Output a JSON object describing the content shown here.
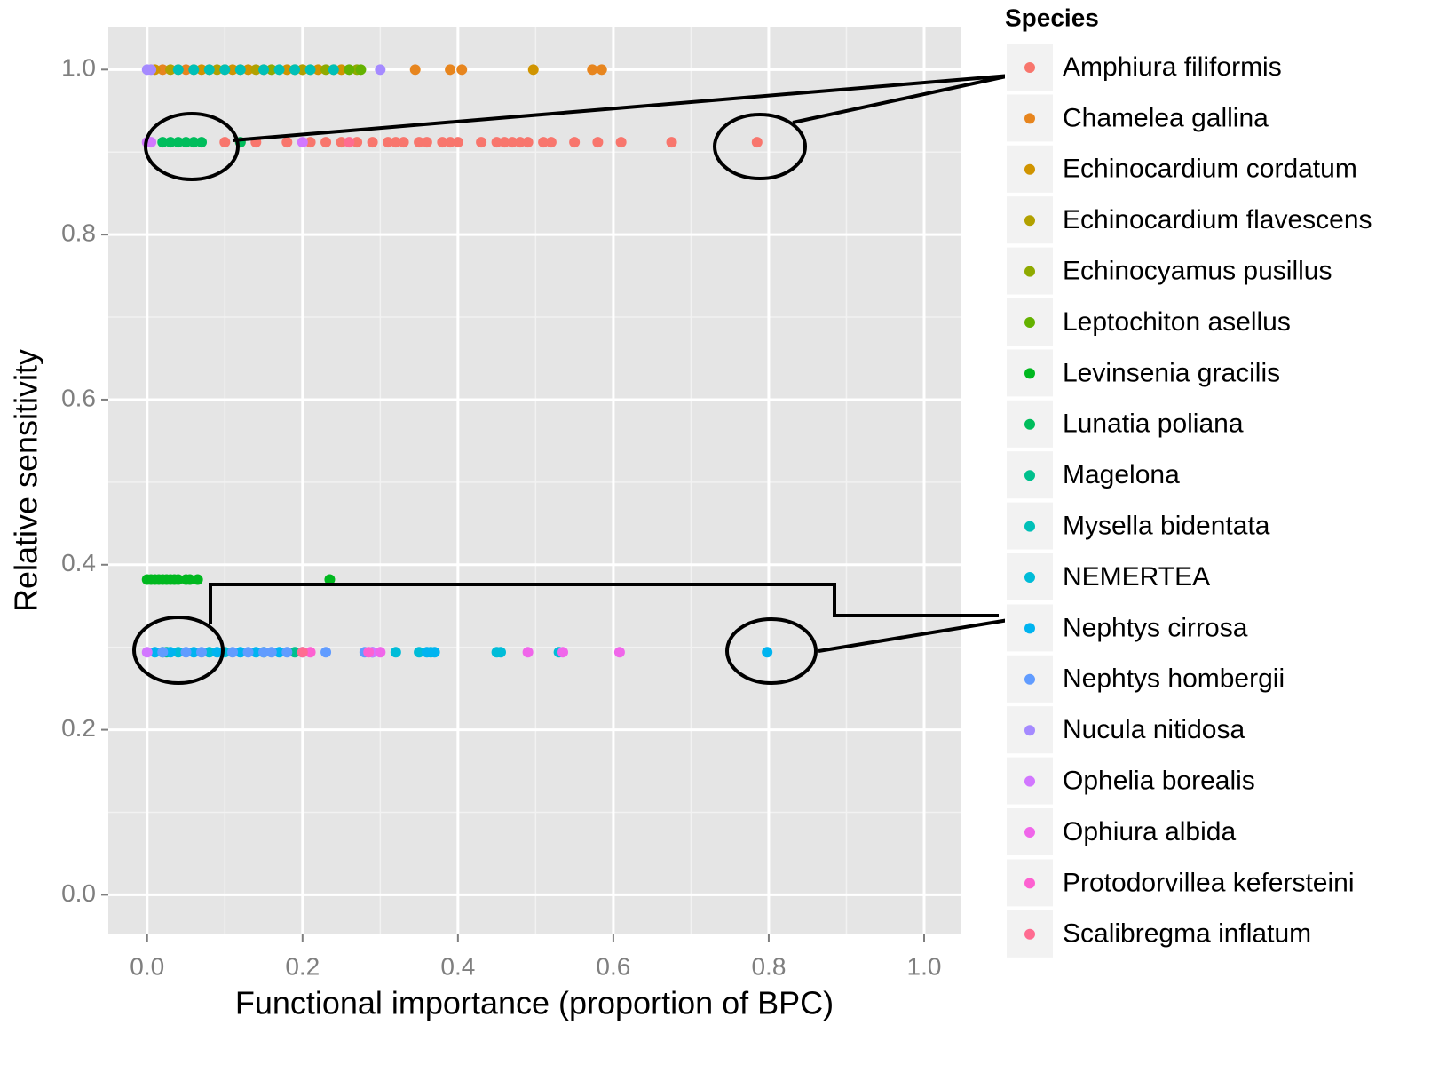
{
  "chart_data": {
    "type": "scatter",
    "x_label": "Functional importance (proportion of BPC)",
    "y_label": "Relative sensitivity",
    "legend_title": "Species",
    "xlim": [
      -0.05,
      1.048
    ],
    "ylim": [
      -0.048,
      1.052
    ],
    "xticks": [
      {
        "value": 0,
        "label": "0.0"
      },
      0.2,
      0.4,
      0.6,
      0.8,
      {
        "value": 1,
        "label": "1.0"
      }
    ],
    "yticks": [
      {
        "value": 0,
        "label": "0.0"
      },
      0.2,
      0.4,
      0.6,
      0.8,
      {
        "value": 1,
        "label": "1.0"
      }
    ],
    "grid": true,
    "legend": "right",
    "series": [
      {
        "name": "Amphiura filiformis",
        "color": "#F8766D",
        "x": [
          0.1,
          0.12,
          0.14,
          0.18,
          0.21,
          0.23,
          0.25,
          0.27,
          0.29,
          0.31,
          0.32,
          0.33,
          0.35,
          0.36,
          0.38,
          0.39,
          0.4,
          0.43,
          0.45,
          0.46,
          0.47,
          0.48,
          0.49,
          0.51,
          0.52,
          0.55,
          0.58,
          0.61,
          0.675,
          0.785
        ],
        "values": [
          0.912,
          0.912,
          0.912,
          0.912,
          0.912,
          0.912,
          0.912,
          0.912,
          0.912,
          0.912,
          0.912,
          0.912,
          0.912,
          0.912,
          0.912,
          0.912,
          0.912,
          0.912,
          0.912,
          0.912,
          0.912,
          0.912,
          0.912,
          0.912,
          0.912,
          0.912,
          0.912,
          0.912,
          0.912,
          0.912
        ]
      },
      {
        "name": "Chamelea gallina",
        "color": "#E7851E",
        "x": [
          0.02,
          0.05,
          0.08,
          0.12,
          0.15,
          0.345,
          0.39,
          0.405,
          0.573,
          0.585
        ],
        "values": [
          1,
          1,
          1,
          1,
          1,
          1,
          1,
          1,
          1,
          1
        ]
      },
      {
        "name": "Echinocardium cordatum",
        "color": "#D09400",
        "x": [
          0.01,
          0.04,
          0.07,
          0.11,
          0.13,
          0.18,
          0.2,
          0.22,
          0.25,
          0.497
        ],
        "values": [
          1,
          1,
          1,
          1,
          1,
          1,
          1,
          1,
          1,
          1
        ]
      },
      {
        "name": "Echinocardium flavescens",
        "color": "#B2A100",
        "x": [
          0.03,
          0.06,
          0.09,
          0.14,
          0.2,
          0.21,
          0.24
        ],
        "values": [
          1,
          1,
          1,
          1,
          1,
          1,
          1
        ]
      },
      {
        "name": "Echinocyamus pusillus",
        "color": "#8FAA00",
        "x": [
          0.1,
          0.16,
          0.19,
          0.23,
          0.27
        ],
        "values": [
          1,
          1,
          1,
          1,
          1
        ]
      },
      {
        "name": "Leptochiton asellus",
        "color": "#64B200",
        "x": [
          0.26,
          0.275
        ],
        "values": [
          1,
          1
        ]
      },
      {
        "name": "Levinsenia gracilis",
        "color": "#00B81F",
        "x": [
          0.0,
          0.005,
          0.01,
          0.015,
          0.02,
          0.025,
          0.03,
          0.035,
          0.04,
          0.05,
          0.055,
          0.065,
          0.235
        ],
        "values": [
          0.382,
          0.382,
          0.382,
          0.382,
          0.382,
          0.382,
          0.382,
          0.382,
          0.382,
          0.382,
          0.382,
          0.382,
          0.382
        ]
      },
      {
        "name": "Lunatia poliana",
        "color": "#00BD5C",
        "x": [
          0.02,
          0.03,
          0.04,
          0.05,
          0.06,
          0.07,
          0.12
        ],
        "values": [
          0.912,
          0.912,
          0.912,
          0.912,
          0.912,
          0.912,
          0.912
        ]
      },
      {
        "name": "Magelona",
        "color": "#00C08D",
        "x": [
          0.02,
          0.025,
          0.15,
          0.19
        ],
        "values": [
          0.294,
          0.294,
          0.294,
          0.294
        ]
      },
      {
        "name": "Mysella bidentata",
        "color": "#00C0B8",
        "x": [
          0.04,
          0.06,
          0.08,
          0.1,
          0.12,
          0.15,
          0.17,
          0.19,
          0.21,
          0.24
        ],
        "values": [
          1,
          1,
          1,
          1,
          1,
          1,
          1,
          1,
          1,
          1
        ]
      },
      {
        "name": "NEMERTEA",
        "color": "#00BCD8",
        "x": [
          0.04,
          0.08,
          0.1,
          0.29,
          0.32,
          0.35,
          0.365,
          0.45,
          0.455,
          0.53
        ],
        "values": [
          0.294,
          0.294,
          0.294,
          0.294,
          0.294,
          0.294,
          0.294,
          0.294,
          0.294,
          0.294
        ]
      },
      {
        "name": "Nephtys cirrosa",
        "color": "#00B4F0",
        "x": [
          0.01,
          0.03,
          0.06,
          0.09,
          0.12,
          0.14,
          0.17,
          0.36,
          0.37,
          0.798
        ],
        "values": [
          0.294,
          0.294,
          0.294,
          0.294,
          0.294,
          0.294,
          0.294,
          0.294,
          0.294,
          0.294
        ]
      },
      {
        "name": "Nephtys hombergii",
        "color": "#619CFF",
        "x": [
          0.02,
          0.05,
          0.07,
          0.11,
          0.13,
          0.15,
          0.16,
          0.18,
          0.2,
          0.23,
          0.28
        ],
        "values": [
          0.294,
          0.294,
          0.294,
          0.294,
          0.294,
          0.294,
          0.294,
          0.294,
          0.294,
          0.294,
          0.294
        ]
      },
      {
        "name": "Nucula nitidosa",
        "color": "#A58AFF",
        "x": [
          0.0,
          0.005,
          0.3
        ],
        "values": [
          1,
          1,
          1
        ]
      },
      {
        "name": "Ophelia borealis",
        "color": "#D277FF",
        "x": [
          0.0,
          0.005,
          0.2,
          0.0,
          0.29
        ],
        "values": [
          0.912,
          0.912,
          0.912,
          0.294,
          0.294
        ]
      },
      {
        "name": "Ophiura albida",
        "color": "#F066EA",
        "x": [
          0.3,
          0.49,
          0.535,
          0.608
        ],
        "values": [
          0.294,
          0.294,
          0.294,
          0.294
        ]
      },
      {
        "name": "Protodorvillea kefersteini",
        "color": "#FD61D1",
        "x": [
          0.21,
          0.285
        ],
        "values": [
          0.294,
          0.294
        ]
      },
      {
        "name": "Scalibregma inflatum",
        "color": "#FF6C91",
        "x": [
          0.26,
          0.2
        ],
        "values": [
          0.912,
          0.294
        ]
      }
    ]
  }
}
